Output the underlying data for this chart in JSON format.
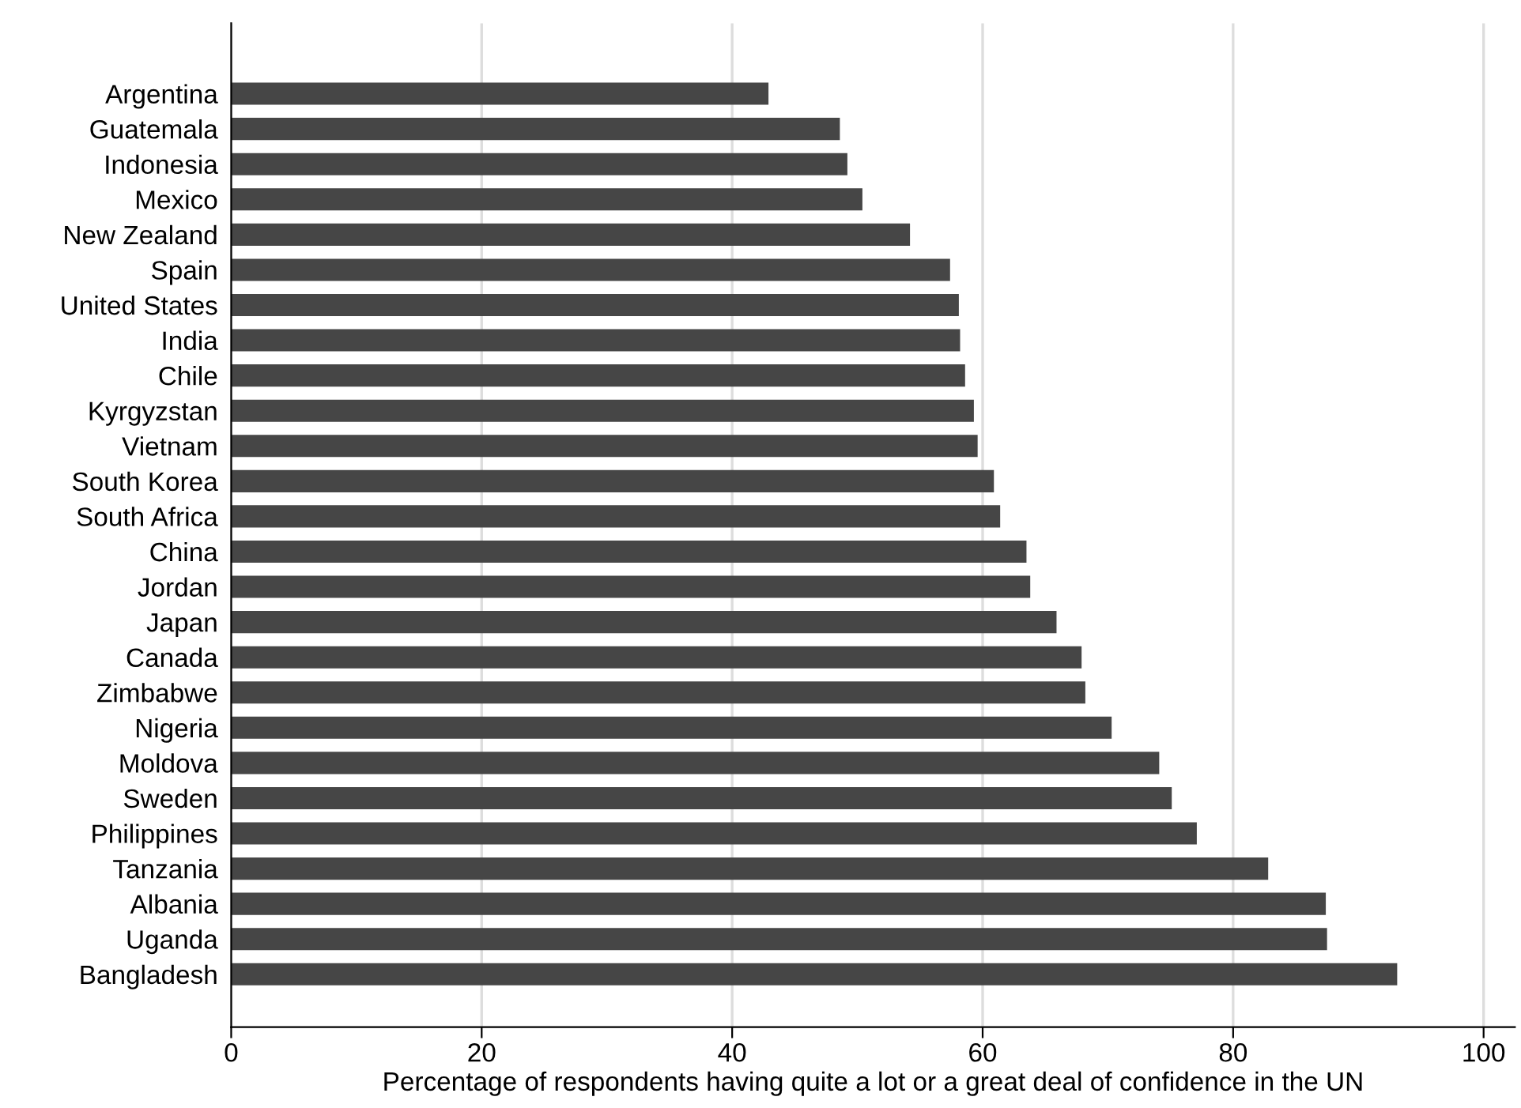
{
  "chart_data": {
    "type": "bar",
    "orientation": "horizontal",
    "xlabel": "Percentage of respondents having quite a lot or a great deal of confidence in the UN",
    "categories": [
      "Argentina",
      "Guatemala",
      "Indonesia",
      "Mexico",
      "New Zealand",
      "Spain",
      "United States",
      "India",
      "Chile",
      "Kyrgyzstan",
      "Vietnam",
      "South Korea",
      "South Africa",
      "China",
      "Jordan",
      "Japan",
      "Canada",
      "Zimbabwe",
      "Nigeria",
      "Moldova",
      "Sweden",
      "Philippines",
      "Tanzania",
      "Albania",
      "Uganda",
      "Bangladesh"
    ],
    "values": [
      42.9,
      48.6,
      49.2,
      50.4,
      54.2,
      57.4,
      58.1,
      58.2,
      58.6,
      59.3,
      59.6,
      60.9,
      61.4,
      63.5,
      63.8,
      65.9,
      67.9,
      68.2,
      70.3,
      74.1,
      75.1,
      77.1,
      82.8,
      87.4,
      87.5,
      93.1
    ],
    "color": "#464646",
    "xlim": [
      0,
      102.5
    ],
    "xticks": [
      0,
      20,
      40,
      60,
      80,
      100
    ],
    "grid": "x"
  }
}
